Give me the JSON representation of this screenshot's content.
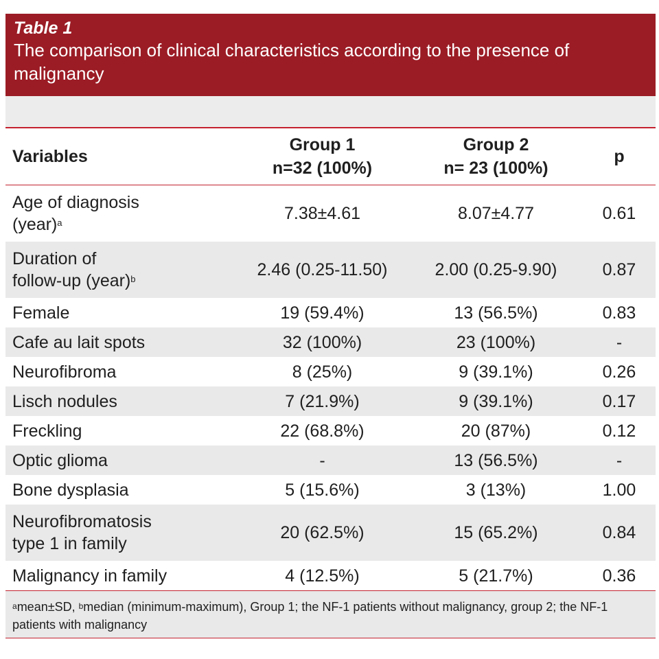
{
  "table": {
    "label": "Table 1",
    "title": "The comparison of clinical characteristics according to the presence of malignancy",
    "columns": {
      "variables": "Variables",
      "group1": "Group 1",
      "group1_n": "n=32 (100%)",
      "group2": "Group 2",
      "group2_n": "n= 23 (100%)",
      "p": "p"
    },
    "rows": [
      {
        "variable": "Age of diagnosis",
        "variable_line2": "(year)",
        "sup": "a",
        "g1": "7.38±4.61",
        "g2": "8.07±4.77",
        "p": "0.61"
      },
      {
        "variable": "Duration of",
        "variable_line2": "follow-up (year)",
        "sup": "b",
        "g1": "2.46 (0.25-11.50)",
        "g2": "2.00 (0.25-9.90)",
        "p": "0.87"
      },
      {
        "variable": "Female",
        "g1": "19 (59.4%)",
        "g2": "13 (56.5%)",
        "p": "0.83"
      },
      {
        "variable": "Cafe au lait spots",
        "g1": "32 (100%)",
        "g2": "23 (100%)",
        "p": "-"
      },
      {
        "variable": "Neurofibroma",
        "g1": "8 (25%)",
        "g2": "9 (39.1%)",
        "p": "0.26"
      },
      {
        "variable": "Lisch nodules",
        "g1": "7 (21.9%)",
        "g2": "9 (39.1%)",
        "p": "0.17"
      },
      {
        "variable": "Freckling",
        "g1": "22 (68.8%)",
        "g2": "20 (87%)",
        "p": "0.12"
      },
      {
        "variable": "Optic glioma",
        "g1": "-",
        "g2": "13 (56.5%)",
        "p": "-"
      },
      {
        "variable": "Bone dysplasia",
        "g1": "5 (15.6%)",
        "g2": "3 (13%)",
        "p": "1.00"
      },
      {
        "variable": "Neurofibromatosis",
        "variable_line2": "type 1 in family",
        "g1": "20 (62.5%)",
        "g2": "15 (65.2%)",
        "p": "0.84"
      },
      {
        "variable": "Malignancy in family",
        "g1": "4 (12.5%)",
        "g2": "5 (21.7%)",
        "p": "0.36"
      }
    ],
    "footnote": {
      "sup_a": "a",
      "text_a": "mean±SD, ",
      "sup_b": "b",
      "text_b": "median (minimum-maximum), Group 1; the NF-1 patients without malignancy, group 2; the NF-1 patients with malignancy"
    }
  },
  "colors": {
    "header_bg": "#9b1c25",
    "rule": "#c4212e",
    "alt_row": "#e9e9e9"
  }
}
